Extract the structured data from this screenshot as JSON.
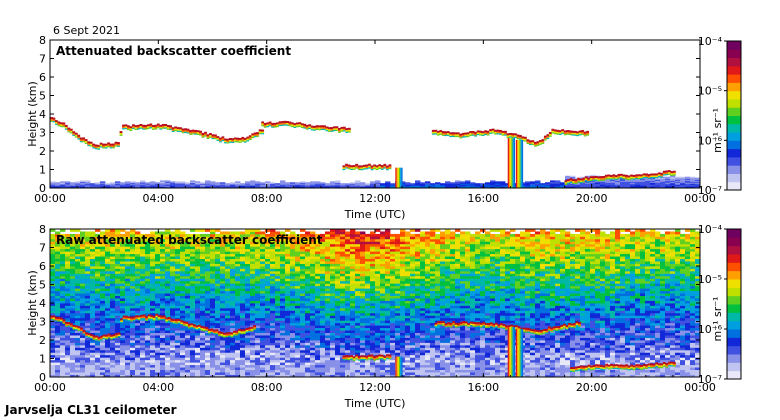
{
  "date_label": "6 Sept 2021",
  "footer_label": "Jarvselja CL31 ceilometer",
  "colormap": [
    "#e8e8f8",
    "#c0c4f0",
    "#8890e8",
    "#4050e0",
    "#1028d8",
    "#0070e0",
    "#00a0e0",
    "#00b8a8",
    "#00c040",
    "#60d020",
    "#c0e000",
    "#f0e000",
    "#ffa000",
    "#ff5000",
    "#e01818",
    "#b01040",
    "#8a0050",
    "#700060"
  ],
  "chart_data": [
    {
      "type": "heatmap",
      "title": "Attenuated backscatter coefficient",
      "xlabel": "Time (UTC)",
      "ylabel": "Height (km)",
      "xlim": [
        0,
        24
      ],
      "ylim": [
        0,
        8
      ],
      "xticks": [
        "00:00",
        "04:00",
        "08:00",
        "12:00",
        "16:00",
        "20:00",
        "00:00"
      ],
      "yticks": [
        "0",
        "1",
        "2",
        "3",
        "4",
        "5",
        "6",
        "7",
        "8"
      ],
      "colorbar": {
        "label": "m⁻¹ sr⁻¹",
        "scale": "log",
        "range": [
          1e-07,
          0.0001
        ],
        "ticks": [
          "10⁻⁴",
          "10⁻⁵",
          "10⁻⁶",
          "10⁻⁷"
        ]
      },
      "features": [
        {
          "name": "cloud layer",
          "points": [
            [
              0,
              3.7
            ],
            [
              0.5,
              3.3
            ],
            [
              1.0,
              2.7
            ],
            [
              1.6,
              2.2
            ],
            [
              2.5,
              2.3
            ],
            [
              2.6,
              3.2
            ],
            [
              4.0,
              3.3
            ],
            [
              5.5,
              2.9
            ],
            [
              6.5,
              2.5
            ],
            [
              7.2,
              2.6
            ],
            [
              7.8,
              3.0
            ]
          ]
        },
        {
          "name": "upper cloud",
          "points": [
            [
              7.8,
              3.4
            ],
            [
              8.9,
              3.4
            ],
            [
              9.7,
              3.2
            ],
            [
              11.0,
              3.1
            ]
          ]
        },
        {
          "name": "low cloud",
          "points": [
            [
              10.8,
              1.1
            ],
            [
              11.5,
              1.1
            ],
            [
              12.5,
              1.1
            ]
          ]
        },
        {
          "name": "cloud layer 2",
          "points": [
            [
              14.1,
              3.0
            ],
            [
              15.0,
              2.8
            ],
            [
              16.4,
              3.0
            ],
            [
              17.2,
              2.7
            ],
            [
              18.0,
              2.3
            ],
            [
              18.5,
              3.0
            ],
            [
              19.8,
              2.9
            ]
          ]
        },
        {
          "name": "evening low layer",
          "points": [
            [
              19.0,
              0.3
            ],
            [
              20.5,
              0.5
            ],
            [
              22.0,
              0.6
            ],
            [
              23.0,
              0.8
            ]
          ]
        }
      ]
    },
    {
      "type": "heatmap",
      "title": "Raw attenuated backscatter coefficient",
      "xlabel": "Time (UTC)",
      "ylabel": "Height (km)",
      "xlim": [
        0,
        24
      ],
      "ylim": [
        0,
        8
      ],
      "xticks": [
        "00:00",
        "04:00",
        "08:00",
        "12:00",
        "16:00",
        "20:00",
        "00:00"
      ],
      "yticks": [
        "0",
        "1",
        "2",
        "3",
        "4",
        "5",
        "6",
        "7",
        "8"
      ],
      "colorbar": {
        "label": "m⁻¹ sr⁻¹",
        "scale": "log",
        "range": [
          1e-07,
          0.0001
        ],
        "ticks": [
          "10⁻⁴",
          "10⁻⁵",
          "10⁻⁶",
          "10⁻⁷"
        ]
      },
      "features": [
        {
          "name": "cloud layer",
          "points": [
            [
              0,
              3.2
            ],
            [
              1.0,
              2.6
            ],
            [
              1.6,
              2.0
            ],
            [
              2.5,
              2.2
            ],
            [
              2.6,
              3.1
            ],
            [
              4.0,
              3.2
            ],
            [
              5.5,
              2.6
            ],
            [
              6.5,
              2.2
            ],
            [
              7.5,
              2.6
            ]
          ]
        },
        {
          "name": "low cloud",
          "points": [
            [
              10.8,
              1.0
            ],
            [
              11.8,
              1.0
            ],
            [
              12.5,
              1.0
            ]
          ]
        },
        {
          "name": "cloud layer 2",
          "points": [
            [
              14.2,
              2.8
            ],
            [
              16.0,
              2.8
            ],
            [
              17.0,
              2.6
            ],
            [
              18.0,
              2.4
            ],
            [
              19.5,
              2.8
            ]
          ]
        },
        {
          "name": "evening low layer",
          "points": [
            [
              19.2,
              0.4
            ],
            [
              20.5,
              0.5
            ],
            [
              22.0,
              0.5
            ],
            [
              23.0,
              0.7
            ]
          ]
        }
      ]
    }
  ]
}
